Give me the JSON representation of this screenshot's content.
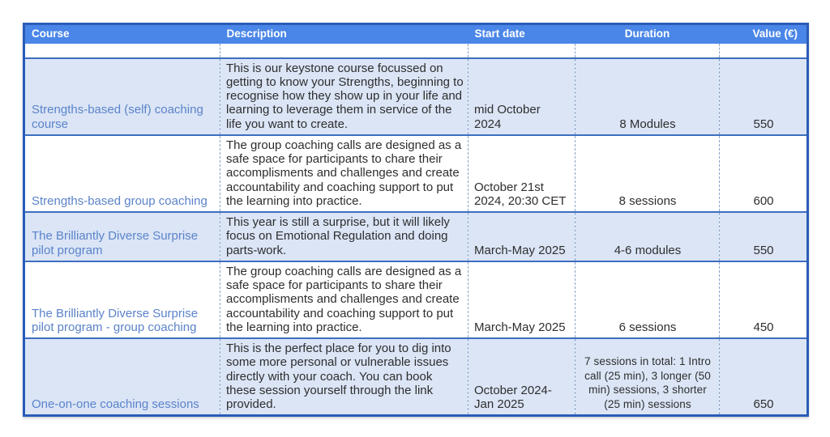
{
  "colors": {
    "header_bg": "#4a86e8",
    "outer_border": "#2a5cb8",
    "row_separator": "#3d6ec0",
    "column_dashed_separator": "#8aa3c9",
    "shaded_row_bg": "#dbe5f6",
    "course_link_color": "#5b83c9",
    "body_text": "#2e2e2e",
    "header_text": "#ffffff"
  },
  "table": {
    "columns": [
      {
        "label": "Course"
      },
      {
        "label": "Description"
      },
      {
        "label": "Start date"
      },
      {
        "label": "Duration"
      },
      {
        "label": "Value (€)"
      }
    ],
    "rows": [
      {
        "course": "Strengths-based (self) coaching course",
        "description": "This is our keystone course focussed on getting to know your Strengths, beginning to recognise how they show up in your life and learning to leverage them in service of the life you want to create.",
        "start_date": "mid October 2024",
        "duration": "8 Modules",
        "value": "550"
      },
      {
        "course": "Strengths-based group coaching",
        "description": "The group coaching calls are designed as a safe space for participants to chare their accomplisments and challenges and create accountability and coaching support to put the learning into practice.",
        "start_date": "October 21st 2024, 20:30 CET",
        "duration": "8 sessions",
        "value": "600"
      },
      {
        "course": "The Brilliantly Diverse Surprise pilot program",
        "description": "This year is still a surprise, but it will likely focus on Emotional Regulation and doing parts-work.",
        "start_date": "March-May 2025",
        "duration": "4-6 modules",
        "value": "550"
      },
      {
        "course": "The Brilliantly Diverse Surprise pilot program - group coaching",
        "description": "The group coaching calls are designed as a safe space for participants to share their accomplisments and challenges and create accountability and coaching support to put the learning into practice.",
        "start_date": "March-May 2025",
        "duration": "6 sessions",
        "value": "450"
      },
      {
        "course": "One-on-one coaching sessions",
        "description": "This is the perfect place for you to dig into some more personal or vulnerable issues directly with your coach. You can book these session yourself through the link provided.",
        "start_date": "October 2024-Jan 2025",
        "duration": "7 sessions in total: 1 Intro call (25 min), 3 longer (50 min) sessions, 3 shorter (25 min) sessions",
        "value": "650"
      }
    ]
  }
}
